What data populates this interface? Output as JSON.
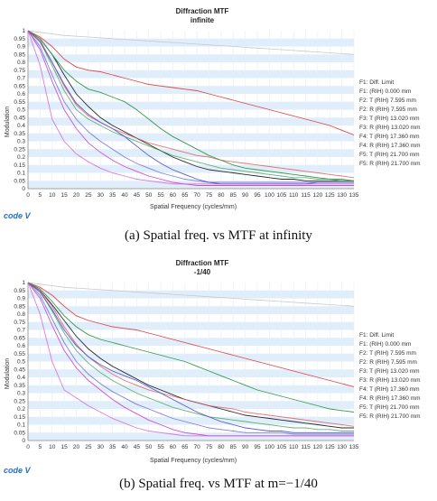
{
  "colors": {
    "diff_limit": "#c8c8c8",
    "f1": "#2a2a2a",
    "f2": "#e04848",
    "f3": "#3a9a4a",
    "f4": "#5a5ac8",
    "f5": "#d050d0",
    "grid_band": "#dfeefa",
    "logo": "#1f6fd0"
  },
  "logo_text": "code V",
  "legend": [
    {
      "label": "F1: Diff. Limit",
      "color": "diff_limit"
    },
    {
      "label": "F1: (RIH) 0.000 mm",
      "color": "f1"
    },
    {
      "label": "F2: T (RIH) 7.595 mm",
      "color": "f2"
    },
    {
      "label": "F2: R (RIH) 7.595 mm",
      "color": "f2"
    },
    {
      "label": "F3: T (RIH) 13.020 mm",
      "color": "f3"
    },
    {
      "label": "F3: R (RIH) 13.020 mm",
      "color": "f3"
    },
    {
      "label": "F4: T (RIH) 17.360 mm",
      "color": "f4"
    },
    {
      "label": "F4: R (RIH) 17.360 mm",
      "color": "f4"
    },
    {
      "label": "F5: T (RIH) 21.700 mm",
      "color": "f5"
    },
    {
      "label": "F5: R (RIH) 21.700 mm",
      "color": "f5"
    }
  ],
  "panels": [
    {
      "caption": "(a) Spatial freq. vs MTF at infinity",
      "legend_rows": [
        "F1: Diff. Limit",
        "F1: (RIH) 0.000 mm",
        "F2: T (RIH) 7.595 mm",
        "F2: R (RIH) 7.595 mm",
        "F3: T (RIH) 13.020 mm",
        "F3: R (RIH) 13.020 mm",
        "F4: T (RIH) 17.360 mm",
        "F4: R (RIH) 17.360 mm",
        "F5: T (RIH) 21.700 mm",
        "F5: R (RIH) 21.700 mm"
      ]
    },
    {
      "caption": "(b) Spatial freq. vs MTF at m=−1/40",
      "legend_rows": [
        "F1: Diff. Limit",
        "F1: (RIH) 0.000 mm",
        "F2: T (RIH) 7.595 mm",
        "F2: R (RIH) 7.595 mm",
        "F3: T (RIH) 13.020 mm",
        "F3: R (RIH) 13.020 mm",
        "F4: T (RIH) 17.360 mm",
        "F4: R (RIH) 17.360 mm",
        "F5: T (RIH) 21.700 mm",
        "F5: R (RIH) 21.700 mm"
      ]
    }
  ],
  "chart_data": [
    {
      "type": "line",
      "title": "Diffraction MTF",
      "subtitle": "infinite",
      "xlabel": "Spatial Frequency (cycles/mm)",
      "ylabel": "Modulation",
      "xlim": [
        0,
        135
      ],
      "ylim": [
        0,
        1
      ],
      "x_ticks": [
        0,
        5,
        10,
        15,
        20,
        25,
        30,
        35,
        40,
        45,
        50,
        55,
        60,
        65,
        70,
        75,
        80,
        85,
        90,
        95,
        100,
        105,
        110,
        115,
        120,
        125,
        130,
        135
      ],
      "y_ticks": [
        0.05,
        0.1,
        0.15,
        0.2,
        0.25,
        0.3,
        0.35,
        0.4,
        0.45,
        0.5,
        0.55,
        0.6,
        0.65,
        0.7,
        0.75,
        0.8,
        0.85,
        0.9,
        0.95,
        1
      ],
      "x": [
        0,
        5,
        10,
        15,
        20,
        25,
        30,
        35,
        40,
        45,
        50,
        55,
        60,
        65,
        70,
        75,
        80,
        85,
        90,
        95,
        100,
        105,
        110,
        115,
        120,
        125,
        130,
        135
      ],
      "series": [
        {
          "name": "F1: Diff. Limit",
          "color": "diff_limit",
          "values": [
            1.0,
            0.99,
            0.98,
            0.97,
            0.965,
            0.96,
            0.955,
            0.95,
            0.945,
            0.94,
            0.935,
            0.93,
            0.925,
            0.92,
            0.915,
            0.91,
            0.905,
            0.9,
            0.895,
            0.89,
            0.885,
            0.88,
            0.875,
            0.87,
            0.865,
            0.86,
            0.855,
            0.85
          ]
        },
        {
          "name": "F1: (RIH) 0.000 mm",
          "color": "f1",
          "values": [
            1.0,
            0.95,
            0.85,
            0.72,
            0.6,
            0.52,
            0.45,
            0.4,
            0.36,
            0.32,
            0.28,
            0.24,
            0.2,
            0.17,
            0.14,
            0.12,
            0.11,
            0.1,
            0.09,
            0.08,
            0.07,
            0.06,
            0.06,
            0.05,
            0.05,
            0.05,
            0.05,
            0.05
          ]
        },
        {
          "name": "F2: T (RIH) 7.595 mm",
          "color": "f2",
          "values": [
            1.0,
            0.96,
            0.9,
            0.82,
            0.77,
            0.75,
            0.74,
            0.72,
            0.7,
            0.68,
            0.66,
            0.65,
            0.64,
            0.63,
            0.62,
            0.6,
            0.58,
            0.56,
            0.54,
            0.52,
            0.5,
            0.48,
            0.46,
            0.44,
            0.42,
            0.4,
            0.37,
            0.34
          ]
        },
        {
          "name": "F2: R (RIH) 7.595 mm",
          "color": "f2",
          "values": [
            1.0,
            0.94,
            0.8,
            0.65,
            0.53,
            0.46,
            0.42,
            0.38,
            0.35,
            0.32,
            0.29,
            0.27,
            0.25,
            0.23,
            0.21,
            0.2,
            0.18,
            0.17,
            0.16,
            0.15,
            0.14,
            0.13,
            0.12,
            0.11,
            0.1,
            0.09,
            0.08,
            0.07
          ]
        },
        {
          "name": "F3: T (RIH) 13.020 mm",
          "color": "f3",
          "values": [
            1.0,
            0.95,
            0.85,
            0.75,
            0.68,
            0.63,
            0.61,
            0.58,
            0.55,
            0.5,
            0.44,
            0.38,
            0.33,
            0.29,
            0.25,
            0.21,
            0.18,
            0.15,
            0.13,
            0.12,
            0.11,
            0.1,
            0.09,
            0.08,
            0.07,
            0.06,
            0.06,
            0.05
          ]
        },
        {
          "name": "F3: R (RIH) 13.020 mm",
          "color": "f3",
          "values": [
            1.0,
            0.93,
            0.78,
            0.62,
            0.5,
            0.44,
            0.4,
            0.36,
            0.33,
            0.3,
            0.27,
            0.24,
            0.21,
            0.19,
            0.17,
            0.15,
            0.13,
            0.12,
            0.11,
            0.1,
            0.09,
            0.08,
            0.07,
            0.07,
            0.06,
            0.06,
            0.05,
            0.05
          ]
        },
        {
          "name": "F4: T (RIH) 17.360 mm",
          "color": "f4",
          "values": [
            1.0,
            0.93,
            0.8,
            0.66,
            0.54,
            0.47,
            0.42,
            0.38,
            0.33,
            0.27,
            0.21,
            0.16,
            0.12,
            0.09,
            0.06,
            0.04,
            0.03,
            0.03,
            0.03,
            0.03,
            0.03,
            0.03,
            0.03,
            0.03,
            0.04,
            0.04,
            0.04,
            0.04
          ]
        },
        {
          "name": "F4: R (RIH) 17.360 mm",
          "color": "f4",
          "values": [
            1.0,
            0.9,
            0.72,
            0.55,
            0.44,
            0.36,
            0.3,
            0.25,
            0.2,
            0.16,
            0.13,
            0.1,
            0.08,
            0.06,
            0.05,
            0.04,
            0.04,
            0.04,
            0.04,
            0.04,
            0.04,
            0.04,
            0.04,
            0.04,
            0.04,
            0.04,
            0.04,
            0.04
          ]
        },
        {
          "name": "F5: T (RIH) 21.700 mm",
          "color": "f5",
          "values": [
            1.0,
            0.88,
            0.68,
            0.5,
            0.38,
            0.29,
            0.23,
            0.18,
            0.14,
            0.11,
            0.08,
            0.06,
            0.04,
            0.03,
            0.02,
            0.02,
            0.02,
            0.02,
            0.02,
            0.02,
            0.02,
            0.02,
            0.02,
            0.02,
            0.02,
            0.02,
            0.02,
            0.02
          ]
        },
        {
          "name": "F5: R (RIH) 21.700 mm",
          "color": "f5",
          "values": [
            1.0,
            0.78,
            0.44,
            0.3,
            0.22,
            0.17,
            0.13,
            0.1,
            0.08,
            0.06,
            0.05,
            0.04,
            0.03,
            0.03,
            0.03,
            0.03,
            0.03,
            0.03,
            0.03,
            0.03,
            0.03,
            0.03,
            0.03,
            0.03,
            0.03,
            0.03,
            0.03,
            0.03
          ]
        }
      ]
    },
    {
      "type": "line",
      "title": "Diffraction MTF",
      "subtitle": "-1/40",
      "xlabel": "Spatial Frequency (cycles/mm)",
      "ylabel": "Modulation",
      "xlim": [
        0,
        135
      ],
      "ylim": [
        0,
        1
      ],
      "x_ticks": [
        0,
        5,
        10,
        15,
        20,
        25,
        30,
        35,
        40,
        45,
        50,
        55,
        60,
        65,
        70,
        75,
        80,
        85,
        90,
        95,
        100,
        105,
        110,
        115,
        120,
        125,
        130,
        135
      ],
      "y_ticks": [
        0.05,
        0.1,
        0.15,
        0.2,
        0.25,
        0.3,
        0.35,
        0.4,
        0.45,
        0.5,
        0.55,
        0.6,
        0.65,
        0.7,
        0.75,
        0.8,
        0.85,
        0.9,
        0.95,
        1
      ],
      "x": [
        0,
        5,
        10,
        15,
        20,
        25,
        30,
        35,
        40,
        45,
        50,
        55,
        60,
        65,
        70,
        75,
        80,
        85,
        90,
        95,
        100,
        105,
        110,
        115,
        120,
        125,
        130,
        135
      ],
      "series": [
        {
          "name": "F1: Diff. Limit",
          "color": "diff_limit",
          "values": [
            1.0,
            0.99,
            0.98,
            0.97,
            0.965,
            0.96,
            0.955,
            0.95,
            0.945,
            0.94,
            0.935,
            0.93,
            0.925,
            0.92,
            0.915,
            0.91,
            0.905,
            0.9,
            0.895,
            0.89,
            0.885,
            0.88,
            0.875,
            0.87,
            0.865,
            0.86,
            0.855,
            0.85
          ]
        },
        {
          "name": "F1: (RIH) 0.000 mm",
          "color": "f1",
          "values": [
            1.0,
            0.95,
            0.86,
            0.76,
            0.66,
            0.58,
            0.52,
            0.47,
            0.43,
            0.39,
            0.35,
            0.32,
            0.29,
            0.26,
            0.24,
            0.22,
            0.2,
            0.18,
            0.16,
            0.15,
            0.14,
            0.13,
            0.12,
            0.11,
            0.1,
            0.09,
            0.08,
            0.08
          ]
        },
        {
          "name": "F2: T (RIH) 7.595 mm",
          "color": "f2",
          "values": [
            1.0,
            0.97,
            0.92,
            0.85,
            0.79,
            0.76,
            0.74,
            0.72,
            0.71,
            0.7,
            0.68,
            0.66,
            0.64,
            0.62,
            0.6,
            0.58,
            0.56,
            0.54,
            0.52,
            0.5,
            0.48,
            0.46,
            0.44,
            0.42,
            0.4,
            0.38,
            0.36,
            0.34
          ]
        },
        {
          "name": "F2: R (RIH) 7.595 mm",
          "color": "f2",
          "values": [
            1.0,
            0.95,
            0.85,
            0.72,
            0.61,
            0.53,
            0.47,
            0.42,
            0.38,
            0.35,
            0.32,
            0.3,
            0.28,
            0.26,
            0.24,
            0.22,
            0.21,
            0.2,
            0.18,
            0.17,
            0.16,
            0.15,
            0.14,
            0.13,
            0.12,
            0.11,
            0.1,
            0.09
          ]
        },
        {
          "name": "F3: T (RIH) 13.020 mm",
          "color": "f3",
          "values": [
            1.0,
            0.96,
            0.88,
            0.79,
            0.72,
            0.67,
            0.64,
            0.62,
            0.6,
            0.58,
            0.56,
            0.54,
            0.52,
            0.5,
            0.47,
            0.44,
            0.41,
            0.38,
            0.35,
            0.32,
            0.3,
            0.28,
            0.26,
            0.24,
            0.22,
            0.2,
            0.19,
            0.18
          ]
        },
        {
          "name": "F3: R (RIH) 13.020 mm",
          "color": "f3",
          "values": [
            1.0,
            0.94,
            0.82,
            0.68,
            0.57,
            0.49,
            0.43,
            0.38,
            0.34,
            0.3,
            0.27,
            0.24,
            0.21,
            0.19,
            0.17,
            0.15,
            0.14,
            0.13,
            0.12,
            0.11,
            0.1,
            0.09,
            0.08,
            0.08,
            0.07,
            0.07,
            0.06,
            0.06
          ]
        },
        {
          "name": "F4: T (RIH) 17.360 mm",
          "color": "f4",
          "values": [
            1.0,
            0.94,
            0.83,
            0.7,
            0.6,
            0.53,
            0.48,
            0.44,
            0.41,
            0.38,
            0.34,
            0.3,
            0.26,
            0.22,
            0.18,
            0.15,
            0.12,
            0.1,
            0.08,
            0.07,
            0.06,
            0.06,
            0.05,
            0.05,
            0.05,
            0.05,
            0.05,
            0.05
          ]
        },
        {
          "name": "F4: R (RIH) 17.360 mm",
          "color": "f4",
          "values": [
            1.0,
            0.92,
            0.77,
            0.62,
            0.5,
            0.42,
            0.36,
            0.31,
            0.27,
            0.23,
            0.2,
            0.17,
            0.14,
            0.12,
            0.1,
            0.08,
            0.07,
            0.06,
            0.05,
            0.05,
            0.05,
            0.05,
            0.04,
            0.04,
            0.04,
            0.04,
            0.04,
            0.04
          ]
        },
        {
          "name": "F5: T (RIH) 21.700 mm",
          "color": "f5",
          "values": [
            1.0,
            0.9,
            0.73,
            0.57,
            0.46,
            0.38,
            0.32,
            0.26,
            0.21,
            0.17,
            0.13,
            0.1,
            0.07,
            0.05,
            0.04,
            0.03,
            0.03,
            0.03,
            0.03,
            0.03,
            0.03,
            0.03,
            0.03,
            0.03,
            0.03,
            0.03,
            0.03,
            0.03
          ]
        },
        {
          "name": "F5: R (RIH) 21.700 mm",
          "color": "f5",
          "values": [
            1.0,
            0.8,
            0.5,
            0.32,
            0.27,
            0.22,
            0.18,
            0.14,
            0.11,
            0.08,
            0.06,
            0.05,
            0.04,
            0.03,
            0.03,
            0.03,
            0.03,
            0.03,
            0.03,
            0.03,
            0.03,
            0.03,
            0.03,
            0.03,
            0.03,
            0.03,
            0.03,
            0.03
          ]
        }
      ]
    }
  ]
}
